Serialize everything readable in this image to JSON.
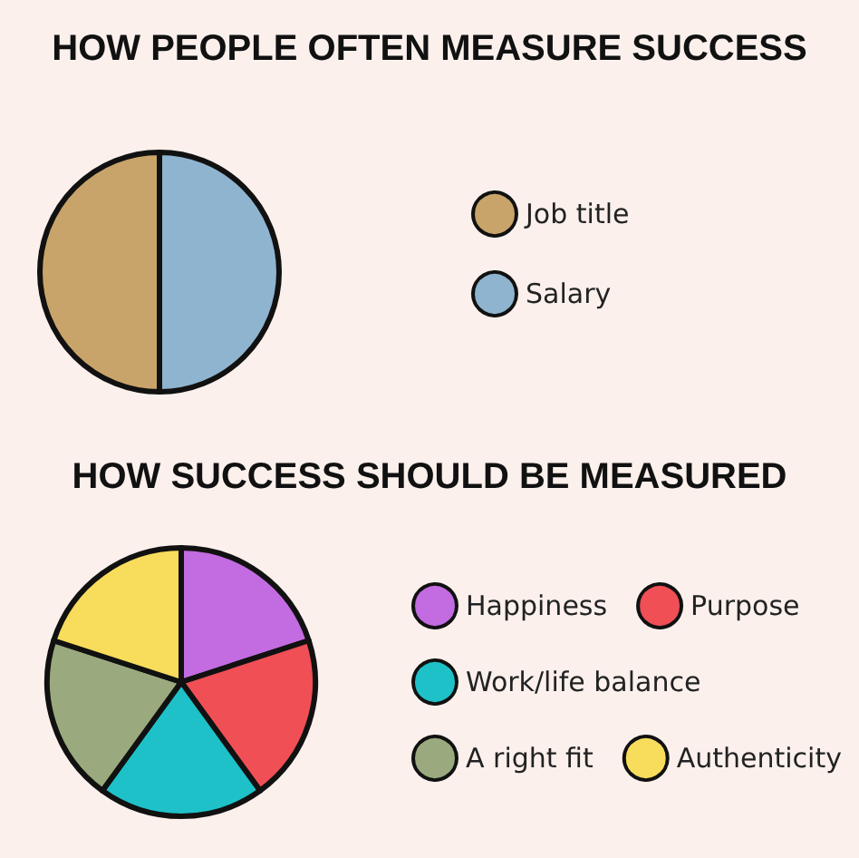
{
  "chart_data": [
    {
      "type": "pie",
      "title": "HOW PEOPLE OFTEN MEASURE SUCCESS",
      "categories": [
        "Job title",
        "Salary"
      ],
      "values": [
        50,
        50
      ],
      "colors": [
        "#c9a46a",
        "#8fb4cf"
      ],
      "legend": "right"
    },
    {
      "type": "pie",
      "title": "HOW SUCCESS SHOULD BE MEASURED",
      "categories": [
        "Happiness",
        "Purpose",
        "Work/life balance",
        "A right fit",
        "Authenticity"
      ],
      "values": [
        20,
        20,
        20,
        20,
        20
      ],
      "colors": [
        "#c36be0",
        "#ef4f55",
        "#1fc1c8",
        "#9aaa7e",
        "#f8dc5c"
      ],
      "legend": "right"
    }
  ]
}
